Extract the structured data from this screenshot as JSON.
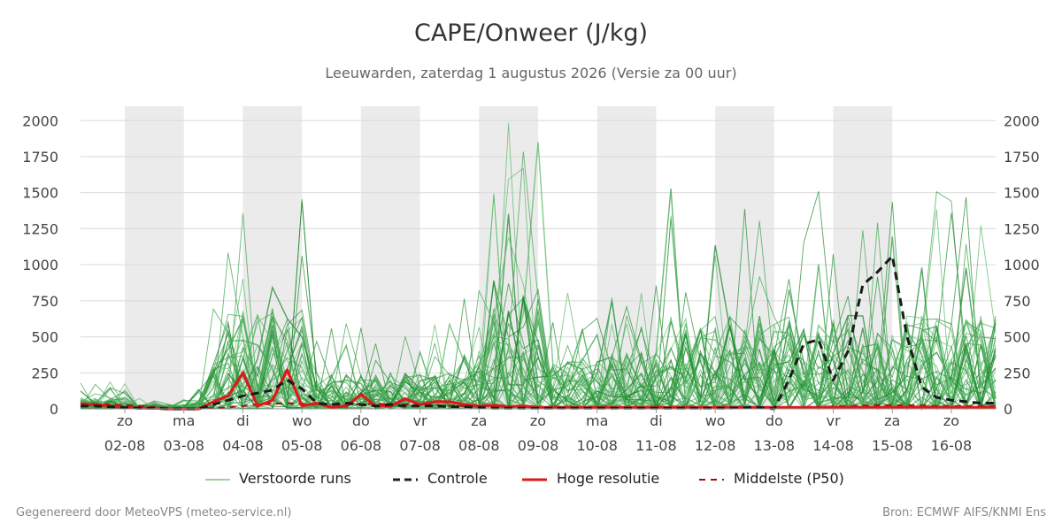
{
  "title": "CAPE/Onweer (J/kg)",
  "subtitle": "Leeuwarden, zaterdag  1 augustus 2026 (Versie za 00 uur)",
  "footer": {
    "left": "Gegenereerd door MeteoVPS (meteo-service.nl)",
    "right": "Bron: ECMWF AIFS/KNMI Ens"
  },
  "legend": [
    {
      "label": "Verstoorde runs",
      "style": "thin-green"
    },
    {
      "label": "Controle",
      "style": "dashed-black"
    },
    {
      "label": "Hoge resolutie",
      "style": "red"
    },
    {
      "label": "Middelste (P50)",
      "style": "dashed-darkred"
    }
  ],
  "chart_data": {
    "type": "line",
    "title": "CAPE/Onweer (J/kg)",
    "xlabel": "",
    "ylabel": "",
    "x_unit": "days since 2026-08-01 00:00",
    "xlim": [
      0,
      15.5
    ],
    "ylim": [
      0,
      2100
    ],
    "yticks": [
      0,
      250,
      500,
      750,
      1000,
      1250,
      1500,
      1750,
      2000
    ],
    "grid": true,
    "right_axis": true,
    "x_ticks": [
      {
        "x": 0.75,
        "day": "zo",
        "date": "02-08"
      },
      {
        "x": 1.75,
        "day": "ma",
        "date": "03-08"
      },
      {
        "x": 2.75,
        "day": "di",
        "date": "04-08"
      },
      {
        "x": 3.75,
        "day": "wo",
        "date": "05-08"
      },
      {
        "x": 4.75,
        "day": "do",
        "date": "06-08"
      },
      {
        "x": 5.75,
        "day": "vr",
        "date": "07-08"
      },
      {
        "x": 6.75,
        "day": "za",
        "date": "08-08"
      },
      {
        "x": 7.75,
        "day": "zo",
        "date": "09-08"
      },
      {
        "x": 8.75,
        "day": "ma",
        "date": "10-08"
      },
      {
        "x": 9.75,
        "day": "di",
        "date": "11-08"
      },
      {
        "x": 10.75,
        "day": "wo",
        "date": "12-08"
      },
      {
        "x": 11.75,
        "day": "do",
        "date": "13-08"
      },
      {
        "x": 12.75,
        "day": "vr",
        "date": "14-08"
      },
      {
        "x": 13.75,
        "day": "za",
        "date": "15-08"
      },
      {
        "x": 14.75,
        "day": "zo",
        "date": "16-08"
      }
    ],
    "night_bands": [
      [
        0.75,
        1.75
      ],
      [
        2.75,
        3.75
      ],
      [
        4.75,
        5.75
      ],
      [
        6.75,
        7.75
      ],
      [
        8.75,
        9.75
      ],
      [
        10.75,
        11.75
      ],
      [
        12.75,
        13.75
      ]
    ],
    "series": [
      {
        "name": "Controle",
        "style": "dashed-black",
        "x": [
          0,
          0.25,
          0.5,
          0.75,
          1,
          1.25,
          1.5,
          1.75,
          2,
          2.25,
          2.5,
          2.75,
          3,
          3.25,
          3.5,
          3.75,
          4,
          4.25,
          4.5,
          4.75,
          5,
          5.25,
          5.5,
          5.75,
          6,
          6.25,
          6.5,
          6.75,
          7,
          7.25,
          7.5,
          7.75,
          8,
          8.25,
          8.5,
          8.75,
          9,
          9.25,
          9.5,
          9.75,
          10,
          10.25,
          10.5,
          10.75,
          11,
          11.25,
          11.5,
          11.75,
          12,
          12.25,
          12.5,
          12.75,
          13,
          13.25,
          13.5,
          13.75,
          14,
          14.25,
          14.5,
          14.75,
          15,
          15.25,
          15.5
        ],
        "y": [
          20,
          20,
          15,
          10,
          5,
          5,
          0,
          0,
          0,
          30,
          60,
          90,
          110,
          130,
          200,
          140,
          40,
          30,
          40,
          30,
          20,
          30,
          20,
          20,
          20,
          15,
          15,
          10,
          5,
          5,
          5,
          5,
          5,
          5,
          5,
          5,
          5,
          5,
          5,
          5,
          5,
          5,
          5,
          5,
          5,
          10,
          10,
          0,
          200,
          450,
          480,
          200,
          400,
          860,
          950,
          1060,
          500,
          150,
          80,
          60,
          50,
          40,
          40
        ]
      },
      {
        "name": "Hoge resolutie",
        "style": "red",
        "x": [
          0,
          0.25,
          0.5,
          0.75,
          1,
          1.25,
          1.5,
          1.75,
          2,
          2.25,
          2.5,
          2.75,
          3,
          3.25,
          3.5,
          3.75,
          4,
          4.25,
          4.5,
          4.75,
          5,
          5.25,
          5.5,
          5.75,
          6,
          6.25,
          6.5,
          6.75,
          7,
          7.25,
          7.5,
          7.75,
          8,
          8.25,
          8.5,
          8.75,
          9,
          9.25,
          9.5,
          9.75,
          10,
          10.25,
          10.5,
          10.75,
          11,
          11.25,
          11.5,
          11.75,
          12,
          12.25,
          12.5,
          12.75,
          13,
          13.25,
          13.5,
          13.75,
          14,
          14.25,
          14.5,
          14.75,
          15,
          15.25,
          15.5
        ],
        "y": [
          30,
          30,
          20,
          10,
          5,
          5,
          0,
          0,
          0,
          50,
          90,
          250,
          20,
          60,
          270,
          20,
          40,
          10,
          20,
          100,
          20,
          20,
          70,
          30,
          50,
          50,
          30,
          20,
          25,
          15,
          20,
          10,
          10,
          10,
          10,
          10,
          10,
          10,
          10,
          10,
          10,
          10,
          10,
          10,
          10,
          10,
          10,
          10,
          10,
          10,
          10,
          10,
          10,
          10,
          10,
          10,
          10,
          10,
          10,
          10,
          10,
          10,
          10
        ]
      },
      {
        "name": "Middelste (P50)",
        "style": "dashed-darkred",
        "x": [
          0,
          0.5,
          1,
          1.5,
          2,
          2.5,
          3,
          3.5,
          4,
          4.5,
          5,
          5.5,
          6,
          6.5,
          7,
          7.5,
          8,
          8.5,
          9,
          9.5,
          10,
          10.5,
          11,
          11.5,
          12,
          12.5,
          13,
          13.5,
          14,
          14.5,
          15,
          15.5
        ],
        "y": [
          40,
          30,
          20,
          5,
          0,
          10,
          30,
          40,
          30,
          30,
          35,
          30,
          25,
          20,
          20,
          15,
          10,
          10,
          10,
          10,
          10,
          10,
          10,
          10,
          10,
          15,
          20,
          25,
          25,
          20,
          20,
          20
        ]
      }
    ]
  }
}
